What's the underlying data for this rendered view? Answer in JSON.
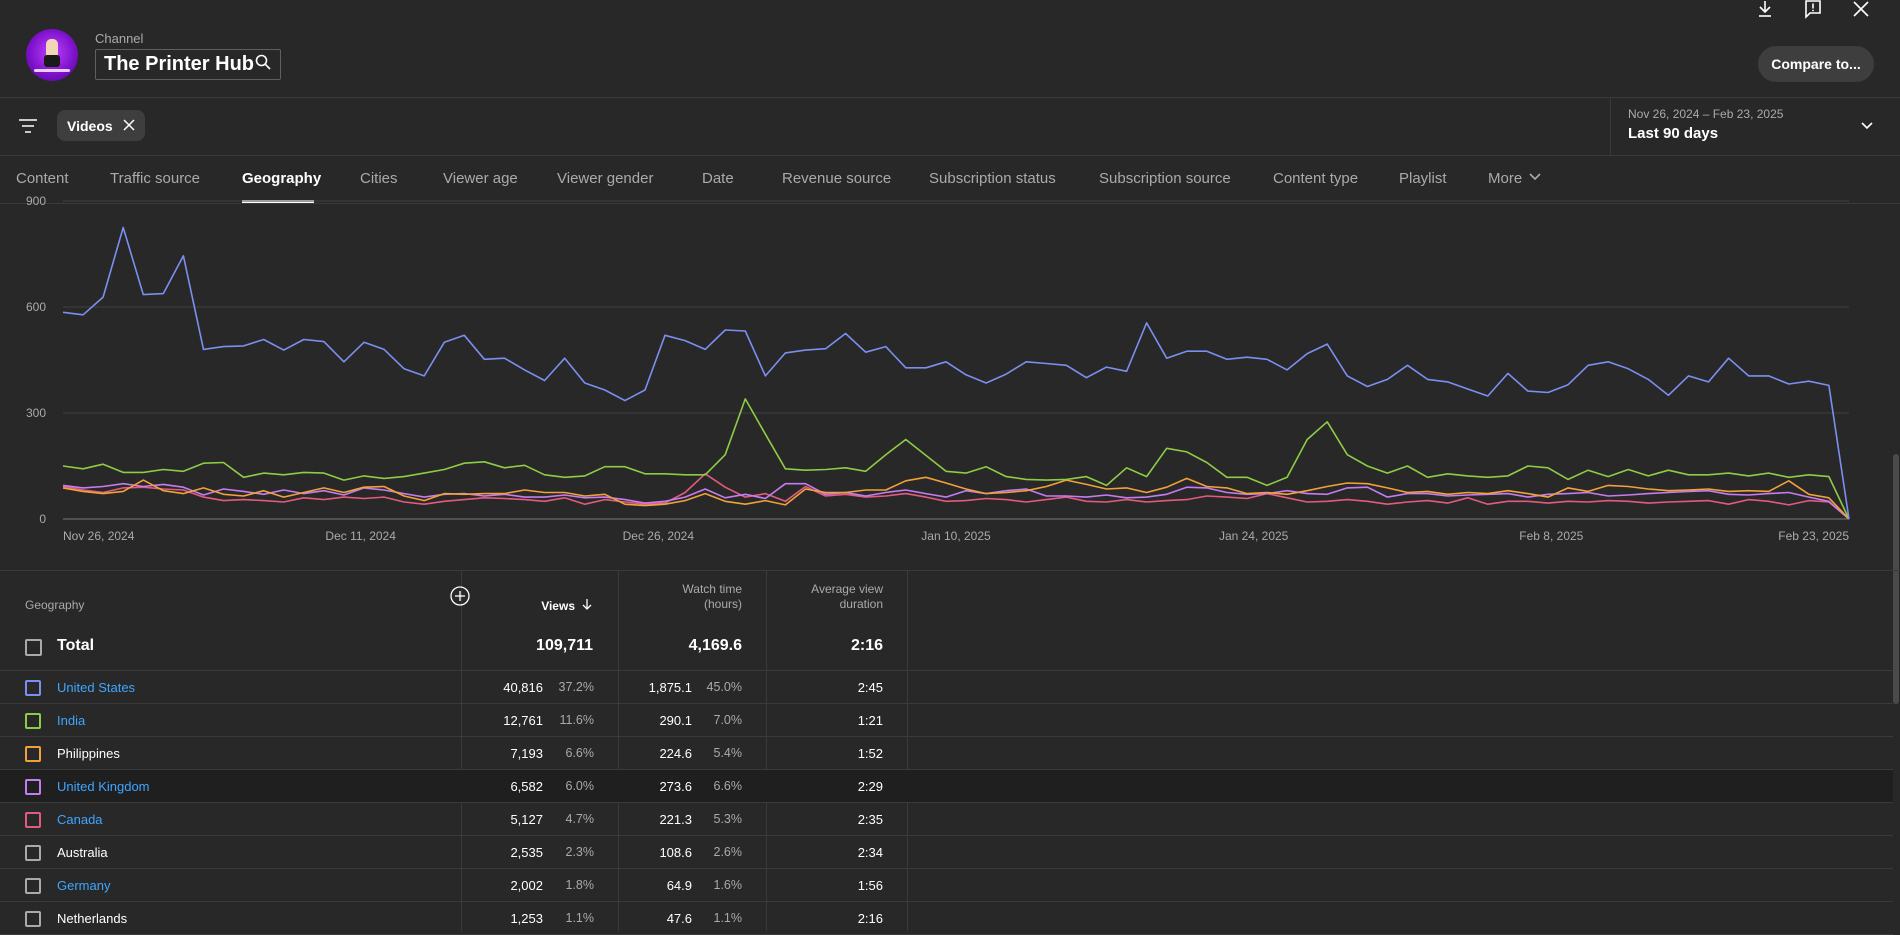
{
  "header": {
    "channel_label": "Channel",
    "channel_name": "The Printer Hub",
    "compare_label": "Compare to..."
  },
  "filter": {
    "chip_label": "Videos"
  },
  "date_range": {
    "range": "Nov 26, 2024 – Feb 23, 2025",
    "label": "Last 90 days"
  },
  "tabs": [
    {
      "label": "Content"
    },
    {
      "label": "Traffic source"
    },
    {
      "label": "Geography"
    },
    {
      "label": "Cities"
    },
    {
      "label": "Viewer age"
    },
    {
      "label": "Viewer gender"
    },
    {
      "label": "Date"
    },
    {
      "label": "Revenue source"
    },
    {
      "label": "Subscription status"
    },
    {
      "label": "Subscription source"
    },
    {
      "label": "Content type"
    },
    {
      "label": "Playlist"
    },
    {
      "label": "More"
    }
  ],
  "chart_data": {
    "type": "line",
    "x_tick_labels": [
      "Nov 26, 2024",
      "Dec 11, 2024",
      "Dec 26, 2024",
      "Jan 10, 2025",
      "Jan 24, 2025",
      "Feb 8, 2025",
      "Feb 23, 2025"
    ],
    "y_tick_labels": [
      "0",
      "300",
      "600",
      "900"
    ],
    "ylim": [
      0,
      900
    ],
    "grid": true,
    "series": [
      {
        "color": "#7b8ff0",
        "values": [
          585,
          578,
          628,
          825,
          635,
          638,
          745,
          480,
          488,
          490,
          508,
          478,
          508,
          502,
          445,
          500,
          480,
          425,
          405,
          500,
          520,
          452,
          455,
          422,
          392,
          455,
          385,
          365,
          335,
          365,
          520,
          505,
          480,
          535,
          532,
          405,
          470,
          478,
          482,
          525,
          472,
          488,
          428,
          428,
          445,
          408,
          385,
          410,
          445,
          440,
          435,
          400,
          430,
          418,
          555,
          455,
          475,
          475,
          452,
          458,
          452,
          422,
          468,
          495,
          405,
          375,
          395,
          435,
          395,
          388,
          368,
          348,
          412,
          362,
          358,
          380,
          435,
          445,
          425,
          395,
          350,
          405,
          388,
          455,
          405,
          405,
          382,
          390,
          378,
          0
        ]
      },
      {
        "color": "#8dcc46",
        "values": [
          150,
          142,
          155,
          132,
          132,
          140,
          135,
          158,
          160,
          118,
          130,
          125,
          132,
          130,
          110,
          122,
          115,
          120,
          130,
          140,
          158,
          162,
          145,
          152,
          125,
          118,
          122,
          148,
          148,
          128,
          128,
          125,
          125,
          182,
          340,
          240,
          142,
          138,
          140,
          145,
          135,
          182,
          225,
          180,
          135,
          130,
          148,
          120,
          112,
          110,
          112,
          120,
          95,
          145,
          120,
          200,
          190,
          160,
          118,
          118,
          95,
          118,
          225,
          275,
          182,
          150,
          130,
          150,
          118,
          128,
          122,
          118,
          122,
          150,
          145,
          112,
          138,
          120,
          140,
          122,
          138,
          125,
          125,
          130,
          122,
          130,
          118,
          125,
          120,
          0
        ]
      },
      {
        "color": "#f0a23a",
        "values": [
          88,
          78,
          72,
          78,
          110,
          80,
          72,
          88,
          70,
          65,
          80,
          62,
          75,
          88,
          75,
          90,
          92,
          65,
          52,
          72,
          70,
          72,
          72,
          82,
          75,
          75,
          65,
          70,
          42,
          38,
          42,
          52,
          72,
          50,
          42,
          52,
          40,
          85,
          75,
          75,
          82,
          82,
          108,
          118,
          102,
          85,
          72,
          75,
          80,
          92,
          110,
          98,
          85,
          88,
          75,
          90,
          115,
          92,
          88,
          72,
          75,
          70,
          80,
          92,
          102,
          100,
          88,
          75,
          78,
          70,
          75,
          72,
          80,
          72,
          62,
          88,
          78,
          95,
          92,
          85,
          80,
          82,
          85,
          78,
          80,
          78,
          108,
          70,
          60,
          0
        ]
      },
      {
        "color": "#c57cf0",
        "values": [
          95,
          88,
          92,
          100,
          92,
          98,
          90,
          68,
          85,
          78,
          70,
          82,
          72,
          80,
          68,
          88,
          82,
          72,
          62,
          70,
          72,
          65,
          70,
          62,
          62,
          68,
          60,
          62,
          55,
          45,
          50,
          62,
          85,
          60,
          70,
          58,
          100,
          100,
          70,
          75,
          65,
          75,
          82,
          72,
          62,
          80,
          72,
          80,
          85,
          65,
          65,
          62,
          68,
          60,
          62,
          70,
          90,
          88,
          75,
          70,
          72,
          80,
          72,
          70,
          88,
          90,
          62,
          72,
          72,
          65,
          68,
          70,
          72,
          62,
          70,
          72,
          75,
          65,
          68,
          72,
          75,
          78,
          80,
          70,
          68,
          72,
          75,
          62,
          50,
          0
        ]
      },
      {
        "color": "#e25b7e",
        "values": [
          92,
          82,
          75,
          88,
          90,
          85,
          82,
          62,
          52,
          55,
          52,
          48,
          60,
          55,
          62,
          58,
          62,
          48,
          42,
          50,
          55,
          60,
          58,
          55,
          50,
          60,
          42,
          55,
          48,
          42,
          45,
          75,
          128,
          90,
          62,
          72,
          50,
          92,
          65,
          70,
          62,
          65,
          72,
          62,
          50,
          52,
          58,
          55,
          48,
          55,
          62,
          50,
          48,
          55,
          48,
          52,
          55,
          65,
          62,
          58,
          72,
          60,
          48,
          50,
          55,
          50,
          42,
          48,
          52,
          45,
          60,
          42,
          50,
          50,
          45,
          50,
          48,
          52,
          50,
          45,
          48,
          50,
          52,
          42,
          55,
          50,
          40,
          52,
          48,
          0
        ]
      }
    ]
  },
  "table": {
    "col_geography": "Geography",
    "col_views": "Views",
    "col_watch_time_1": "Watch time",
    "col_watch_time_2": "(hours)",
    "col_avg_1": "Average view",
    "col_avg_2": "duration",
    "total": {
      "name": "Total",
      "views": "109,711",
      "watch": "4,169.6",
      "avg": "2:16"
    },
    "rows": [
      {
        "name": "United States",
        "link": true,
        "color": "#7b8ff0",
        "views": "40,816",
        "views_pct": "37.2%",
        "watch": "1,875.1",
        "watch_pct": "45.0%",
        "avg": "2:45"
      },
      {
        "name": "India",
        "link": true,
        "color": "#8dcc46",
        "views": "12,761",
        "views_pct": "11.6%",
        "watch": "290.1",
        "watch_pct": "7.0%",
        "avg": "1:21"
      },
      {
        "name": "Philippines",
        "link": false,
        "color": "#f0a23a",
        "views": "7,193",
        "views_pct": "6.6%",
        "watch": "224.6",
        "watch_pct": "5.4%",
        "avg": "1:52"
      },
      {
        "name": "United Kingdom",
        "link": true,
        "color": "#c57cf0",
        "views": "6,582",
        "views_pct": "6.0%",
        "watch": "273.6",
        "watch_pct": "6.6%",
        "avg": "2:29"
      },
      {
        "name": "Canada",
        "link": true,
        "color": "#e25b7e",
        "views": "5,127",
        "views_pct": "4.7%",
        "watch": "221.3",
        "watch_pct": "5.3%",
        "avg": "2:35"
      },
      {
        "name": "Australia",
        "link": false,
        "color": "#aaaaaa",
        "views": "2,535",
        "views_pct": "2.3%",
        "watch": "108.6",
        "watch_pct": "2.6%",
        "avg": "2:34"
      },
      {
        "name": "Germany",
        "link": true,
        "color": "#aaaaaa",
        "views": "2,002",
        "views_pct": "1.8%",
        "watch": "64.9",
        "watch_pct": "1.6%",
        "avg": "1:56"
      },
      {
        "name": "Netherlands",
        "link": false,
        "color": "#aaaaaa",
        "views": "1,253",
        "views_pct": "1.1%",
        "watch": "47.6",
        "watch_pct": "1.1%",
        "avg": "2:16"
      }
    ]
  }
}
